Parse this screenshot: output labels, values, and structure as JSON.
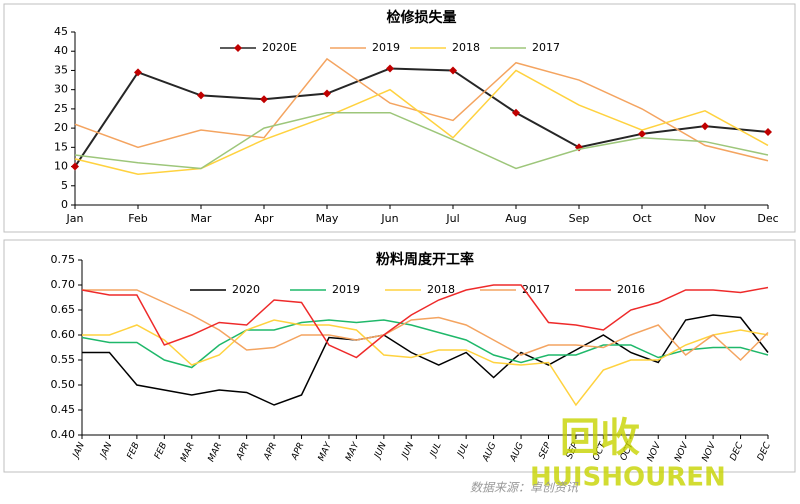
{
  "chart_data": [
    {
      "type": "line",
      "title": "检修损失量",
      "categories": [
        "Jan",
        "Feb",
        "Mar",
        "Apr",
        "May",
        "Jun",
        "Jul",
        "Aug",
        "Sep",
        "Oct",
        "Nov",
        "Dec"
      ],
      "ylim": [
        0,
        45
      ],
      "yticks": [
        0,
        5,
        10,
        15,
        20,
        25,
        30,
        35,
        40,
        45
      ],
      "series": [
        {
          "name": "2020E",
          "color": "#262626",
          "marker_color": "#c00000",
          "values": [
            10,
            34.5,
            28.5,
            27.5,
            29,
            35.5,
            35,
            24,
            15,
            18.5,
            20.5,
            19
          ]
        },
        {
          "name": "2019",
          "color": "#f4a460",
          "values": [
            21,
            15,
            19.5,
            17.5,
            38,
            26.5,
            22,
            37,
            32.5,
            25,
            15.5,
            11.5
          ]
        },
        {
          "name": "2018",
          "color": "#ffd23f",
          "values": [
            12,
            8,
            9.5,
            17,
            23,
            30,
            17.5,
            35,
            26,
            19.5,
            24.5,
            15.5
          ]
        },
        {
          "name": "2017",
          "color": "#9dc67a",
          "values": [
            13,
            11,
            9.5,
            20,
            24,
            24,
            17,
            9.5,
            14.5,
            17.5,
            16.5,
            13
          ]
        }
      ]
    },
    {
      "type": "line",
      "title": "粉料周度开工率",
      "categories": [
        "JAN",
        "JAN",
        "FEB",
        "FEB",
        "MAR",
        "MAR",
        "APR",
        "APR",
        "APR",
        "MAY",
        "MAY",
        "JUN",
        "JUN",
        "JUL",
        "JUL",
        "AUG",
        "AUG",
        "SEP",
        "SEP",
        "OCT",
        "OCT",
        "NOV",
        "NOV",
        "NOV",
        "DEC",
        "DEC"
      ],
      "ylim": [
        0.4,
        0.75
      ],
      "yticks": [
        {
          "value": 0.4,
          "label": "0.40"
        },
        {
          "value": 0.45,
          "label": "0.45"
        },
        {
          "value": 0.5,
          "label": "0.50"
        },
        {
          "value": 0.55,
          "label": "0.55"
        },
        {
          "value": 0.6,
          "label": "0.60"
        },
        {
          "value": 0.65,
          "label": "0.65"
        },
        {
          "value": 0.7,
          "label": "0.70"
        },
        {
          "value": 0.75,
          "label": "0.75"
        }
      ],
      "series": [
        {
          "name": "2020",
          "color": "#000000",
          "values": [
            0.565,
            0.565,
            0.5,
            0.49,
            0.48,
            0.49,
            0.485,
            0.46,
            0.48,
            0.595,
            0.59,
            0.6,
            0.565,
            0.54,
            0.565,
            0.515,
            0.565,
            0.54,
            0.57,
            0.6,
            0.565,
            0.545,
            0.63,
            0.64,
            0.635,
            0.565
          ]
        },
        {
          "name": "2019",
          "color": "#1fb86a",
          "values": [
            0.595,
            0.585,
            0.585,
            0.55,
            0.535,
            0.58,
            0.61,
            0.61,
            0.625,
            0.63,
            0.625,
            0.63,
            0.62,
            0.605,
            0.59,
            0.56,
            0.545,
            0.56,
            0.56,
            0.58,
            0.58,
            0.555,
            0.57,
            0.575,
            0.575,
            0.56
          ]
        },
        {
          "name": "2018",
          "color": "#ffd23f",
          "values": [
            0.6,
            0.6,
            0.62,
            0.59,
            0.54,
            0.56,
            0.61,
            0.63,
            0.62,
            0.62,
            0.61,
            0.56,
            0.555,
            0.57,
            0.57,
            0.545,
            0.54,
            0.545,
            0.46,
            0.53,
            0.55,
            0.55,
            0.58,
            0.6,
            0.61,
            0.6
          ]
        },
        {
          "name": "2017",
          "color": "#f4a460",
          "values": [
            0.69,
            0.69,
            0.69,
            0.665,
            0.64,
            0.61,
            0.57,
            0.575,
            0.6,
            0.6,
            0.59,
            0.6,
            0.63,
            0.635,
            0.62,
            0.59,
            0.56,
            0.58,
            0.58,
            0.575,
            0.6,
            0.62,
            0.56,
            0.6,
            0.55,
            0.605
          ]
        },
        {
          "name": "2016",
          "color": "#ee2a2a",
          "values": [
            0.69,
            0.68,
            0.68,
            0.58,
            0.6,
            0.625,
            0.62,
            0.67,
            0.665,
            0.58,
            0.555,
            0.6,
            0.64,
            0.67,
            0.69,
            0.7,
            0.7,
            0.625,
            0.62,
            0.61,
            0.65,
            0.665,
            0.69,
            0.69,
            0.685,
            0.695
          ]
        }
      ]
    }
  ],
  "watermark": "回收",
  "watermark_text": "HUISHOUREN",
  "source": "数据来源：卓创资讯"
}
